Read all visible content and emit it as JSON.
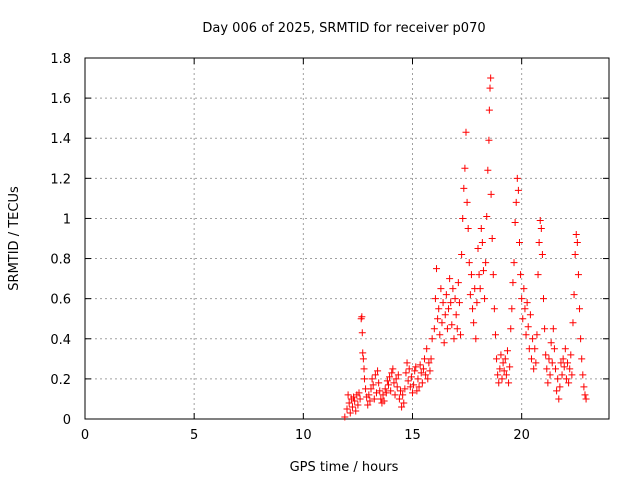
{
  "chart_data": {
    "type": "scatter",
    "title": "Day 006 of 2025, SRMTID for receiver p070",
    "xlabel": "GPS time / hours",
    "ylabel": "SRMTID / TECUs",
    "xlim": [
      0,
      24
    ],
    "ylim": [
      0,
      1.8
    ],
    "xticks": [
      "0",
      "5",
      "10",
      "15",
      "20"
    ],
    "yticks": [
      "0",
      "0.2",
      "0.4",
      "0.6",
      "0.8",
      "1",
      "1.2",
      "1.4",
      "1.6",
      "1.8"
    ],
    "grid": true,
    "marker": "+",
    "color": "#ff0000",
    "series": [
      {
        "name": "SRMTID",
        "points": [
          [
            11.9,
            0.01
          ],
          [
            12.0,
            0.05
          ],
          [
            12.05,
            0.12
          ],
          [
            12.1,
            0.08
          ],
          [
            12.15,
            0.03
          ],
          [
            12.2,
            0.1
          ],
          [
            12.25,
            0.06
          ],
          [
            12.3,
            0.11
          ],
          [
            12.35,
            0.09
          ],
          [
            12.4,
            0.04
          ],
          [
            12.45,
            0.12
          ],
          [
            12.5,
            0.07
          ],
          [
            12.55,
            0.13
          ],
          [
            12.6,
            0.1
          ],
          [
            12.65,
            0.5
          ],
          [
            12.68,
            0.51
          ],
          [
            12.7,
            0.43
          ],
          [
            12.72,
            0.33
          ],
          [
            12.75,
            0.3
          ],
          [
            12.78,
            0.25
          ],
          [
            12.8,
            0.2
          ],
          [
            12.85,
            0.15
          ],
          [
            12.9,
            0.11
          ],
          [
            12.95,
            0.07
          ],
          [
            13.0,
            0.12
          ],
          [
            13.05,
            0.09
          ],
          [
            13.1,
            0.15
          ],
          [
            13.15,
            0.2
          ],
          [
            13.2,
            0.17
          ],
          [
            13.25,
            0.1
          ],
          [
            13.3,
            0.22
          ],
          [
            13.35,
            0.13
          ],
          [
            13.4,
            0.24
          ],
          [
            13.45,
            0.18
          ],
          [
            13.5,
            0.14
          ],
          [
            13.55,
            0.1
          ],
          [
            13.6,
            0.08
          ],
          [
            13.65,
            0.12
          ],
          [
            13.7,
            0.09
          ],
          [
            13.75,
            0.15
          ],
          [
            13.8,
            0.13
          ],
          [
            13.85,
            0.19
          ],
          [
            13.9,
            0.17
          ],
          [
            13.95,
            0.21
          ],
          [
            14.0,
            0.14
          ],
          [
            14.05,
            0.23
          ],
          [
            14.1,
            0.25
          ],
          [
            14.15,
            0.18
          ],
          [
            14.2,
            0.12
          ],
          [
            14.25,
            0.2
          ],
          [
            14.3,
            0.16
          ],
          [
            14.35,
            0.22
          ],
          [
            14.4,
            0.1
          ],
          [
            14.45,
            0.14
          ],
          [
            14.5,
            0.06
          ],
          [
            14.55,
            0.12
          ],
          [
            14.6,
            0.08
          ],
          [
            14.65,
            0.15
          ],
          [
            14.7,
            0.23
          ],
          [
            14.75,
            0.28
          ],
          [
            14.8,
            0.19
          ],
          [
            14.85,
            0.25
          ],
          [
            14.9,
            0.16
          ],
          [
            14.95,
            0.21
          ],
          [
            15.0,
            0.13
          ],
          [
            15.05,
            0.17
          ],
          [
            15.1,
            0.24
          ],
          [
            15.15,
            0.26
          ],
          [
            15.2,
            0.14
          ],
          [
            15.25,
            0.2
          ],
          [
            15.3,
            0.16
          ],
          [
            15.35,
            0.27
          ],
          [
            15.4,
            0.23
          ],
          [
            15.45,
            0.18
          ],
          [
            15.5,
            0.25
          ],
          [
            15.55,
            0.3
          ],
          [
            15.6,
            0.22
          ],
          [
            15.65,
            0.35
          ],
          [
            15.7,
            0.2
          ],
          [
            15.75,
            0.28
          ],
          [
            15.8,
            0.24
          ],
          [
            15.85,
            0.3
          ],
          [
            15.9,
            0.4
          ],
          [
            16.0,
            0.45
          ],
          [
            16.05,
            0.6
          ],
          [
            16.1,
            0.75
          ],
          [
            16.15,
            0.5
          ],
          [
            16.2,
            0.55
          ],
          [
            16.25,
            0.42
          ],
          [
            16.3,
            0.65
          ],
          [
            16.35,
            0.48
          ],
          [
            16.4,
            0.58
          ],
          [
            16.45,
            0.38
          ],
          [
            16.5,
            0.52
          ],
          [
            16.55,
            0.62
          ],
          [
            16.6,
            0.45
          ],
          [
            16.65,
            0.55
          ],
          [
            16.7,
            0.7
          ],
          [
            16.75,
            0.58
          ],
          [
            16.8,
            0.47
          ],
          [
            16.85,
            0.65
          ],
          [
            16.9,
            0.4
          ],
          [
            16.95,
            0.6
          ],
          [
            17.0,
            0.52
          ],
          [
            17.05,
            0.45
          ],
          [
            17.1,
            0.68
          ],
          [
            17.15,
            0.58
          ],
          [
            17.2,
            0.42
          ],
          [
            17.25,
            0.82
          ],
          [
            17.3,
            1.0
          ],
          [
            17.35,
            1.15
          ],
          [
            17.4,
            1.25
          ],
          [
            17.45,
            1.43
          ],
          [
            17.5,
            1.08
          ],
          [
            17.55,
            0.95
          ],
          [
            17.6,
            0.78
          ],
          [
            17.65,
            0.62
          ],
          [
            17.7,
            0.72
          ],
          [
            17.75,
            0.55
          ],
          [
            17.8,
            0.48
          ],
          [
            17.85,
            0.65
          ],
          [
            17.9,
            0.4
          ],
          [
            17.95,
            0.58
          ],
          [
            18.0,
            0.85
          ],
          [
            18.05,
            0.72
          ],
          [
            18.1,
            0.65
          ],
          [
            18.15,
            0.95
          ],
          [
            18.2,
            0.88
          ],
          [
            18.25,
            0.74
          ],
          [
            18.3,
            0.6
          ],
          [
            18.35,
            0.78
          ],
          [
            18.4,
            1.01
          ],
          [
            18.45,
            1.24
          ],
          [
            18.5,
            1.39
          ],
          [
            18.52,
            1.54
          ],
          [
            18.55,
            1.65
          ],
          [
            18.58,
            1.7
          ],
          [
            18.6,
            1.12
          ],
          [
            18.65,
            0.9
          ],
          [
            18.7,
            0.72
          ],
          [
            18.75,
            0.55
          ],
          [
            18.8,
            0.42
          ],
          [
            18.85,
            0.3
          ],
          [
            18.9,
            0.22
          ],
          [
            18.95,
            0.18
          ],
          [
            19.0,
            0.25
          ],
          [
            19.05,
            0.32
          ],
          [
            19.1,
            0.2
          ],
          [
            19.15,
            0.28
          ],
          [
            19.2,
            0.24
          ],
          [
            19.25,
            0.3
          ],
          [
            19.3,
            0.22
          ],
          [
            19.35,
            0.34
          ],
          [
            19.4,
            0.18
          ],
          [
            19.45,
            0.26
          ],
          [
            19.5,
            0.45
          ],
          [
            19.55,
            0.55
          ],
          [
            19.6,
            0.68
          ],
          [
            19.65,
            0.78
          ],
          [
            19.7,
            0.98
          ],
          [
            19.75,
            1.08
          ],
          [
            19.8,
            1.2
          ],
          [
            19.85,
            1.14
          ],
          [
            19.9,
            0.88
          ],
          [
            19.95,
            0.72
          ],
          [
            20.0,
            0.6
          ],
          [
            20.05,
            0.5
          ],
          [
            20.1,
            0.65
          ],
          [
            20.15,
            0.55
          ],
          [
            20.2,
            0.42
          ],
          [
            20.25,
            0.58
          ],
          [
            20.3,
            0.46
          ],
          [
            20.35,
            0.35
          ],
          [
            20.4,
            0.52
          ],
          [
            20.45,
            0.3
          ],
          [
            20.5,
            0.4
          ],
          [
            20.55,
            0.25
          ],
          [
            20.6,
            0.35
          ],
          [
            20.65,
            0.28
          ],
          [
            20.7,
            0.42
          ],
          [
            20.75,
            0.72
          ],
          [
            20.8,
            0.88
          ],
          [
            20.85,
            0.99
          ],
          [
            20.9,
            0.95
          ],
          [
            20.95,
            0.82
          ],
          [
            21.0,
            0.6
          ],
          [
            21.05,
            0.45
          ],
          [
            21.1,
            0.32
          ],
          [
            21.15,
            0.25
          ],
          [
            21.2,
            0.18
          ],
          [
            21.25,
            0.3
          ],
          [
            21.3,
            0.22
          ],
          [
            21.35,
            0.38
          ],
          [
            21.4,
            0.28
          ],
          [
            21.45,
            0.45
          ],
          [
            21.5,
            0.35
          ],
          [
            21.55,
            0.25
          ],
          [
            21.6,
            0.14
          ],
          [
            21.65,
            0.2
          ],
          [
            21.7,
            0.1
          ],
          [
            21.75,
            0.16
          ],
          [
            21.8,
            0.28
          ],
          [
            21.85,
            0.22
          ],
          [
            21.9,
            0.3
          ],
          [
            21.95,
            0.26
          ],
          [
            22.0,
            0.35
          ],
          [
            22.05,
            0.2
          ],
          [
            22.1,
            0.28
          ],
          [
            22.15,
            0.18
          ],
          [
            22.2,
            0.25
          ],
          [
            22.25,
            0.32
          ],
          [
            22.3,
            0.22
          ],
          [
            22.35,
            0.48
          ],
          [
            22.4,
            0.62
          ],
          [
            22.45,
            0.82
          ],
          [
            22.5,
            0.92
          ],
          [
            22.55,
            0.88
          ],
          [
            22.6,
            0.72
          ],
          [
            22.65,
            0.55
          ],
          [
            22.7,
            0.4
          ],
          [
            22.75,
            0.3
          ],
          [
            22.8,
            0.22
          ],
          [
            22.85,
            0.16
          ],
          [
            22.9,
            0.12
          ],
          [
            22.95,
            0.1
          ]
        ]
      }
    ]
  }
}
